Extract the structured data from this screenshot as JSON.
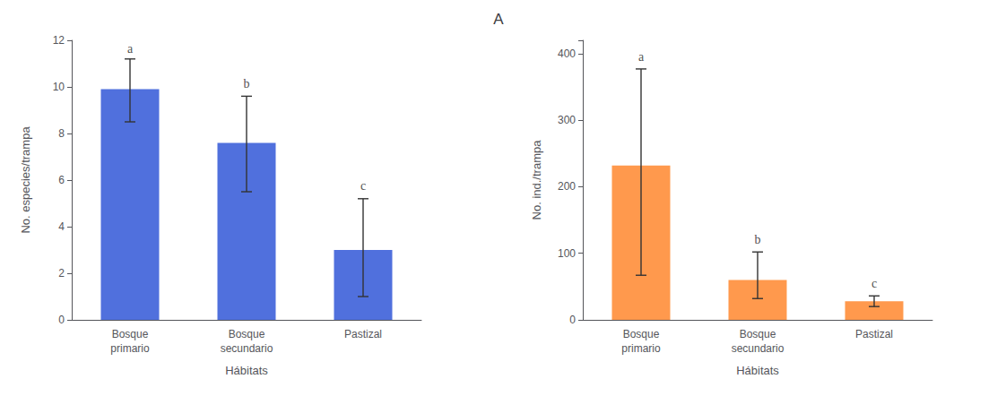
{
  "chart_data": [
    {
      "type": "bar",
      "title": "A",
      "xlabel": "Hábitats",
      "ylabel": "No. especies/trampa",
      "categories": [
        "Bosque\nprimario",
        "Bosque\nsecundario",
        "Pastizal"
      ],
      "values": [
        9.9,
        7.6,
        3.0
      ],
      "errors_upper": [
        1.3,
        2.0,
        2.2
      ],
      "errors_lower": [
        1.4,
        2.1,
        2.0
      ],
      "annotations": [
        {
          "text": "a",
          "x": "Bosque\nprimario",
          "y": 11.3
        },
        {
          "text": "b",
          "x": "Bosque\nsecundario",
          "y": 9.8
        },
        {
          "text": "c",
          "x": "Pastizal",
          "y": 5.4
        }
      ],
      "ylim": [
        0,
        12
      ],
      "yticks": [
        0,
        2,
        4,
        6,
        8,
        10,
        12
      ],
      "grid": false
    },
    {
      "type": "bar",
      "xlabel": "Hábitats",
      "ylabel": "No. ind./trampa",
      "categories": [
        "Bosque\nprimario",
        "Bosque\nsecundario",
        "Pastizal"
      ],
      "values": [
        232,
        60,
        28
      ],
      "errors_upper": [
        145,
        42,
        8
      ],
      "errors_lower": [
        165,
        28,
        8
      ],
      "annotations": [
        {
          "text": "a",
          "x": "Bosque\nprimario",
          "y": 383
        },
        {
          "text": "b",
          "x": "Bosque\nsecundario",
          "y": 108
        },
        {
          "text": "c",
          "x": "Pastizal",
          "y": 42
        }
      ],
      "ylim": [
        0,
        420
      ],
      "yticks": [
        0,
        100,
        200,
        300,
        400
      ],
      "grid": false
    }
  ]
}
